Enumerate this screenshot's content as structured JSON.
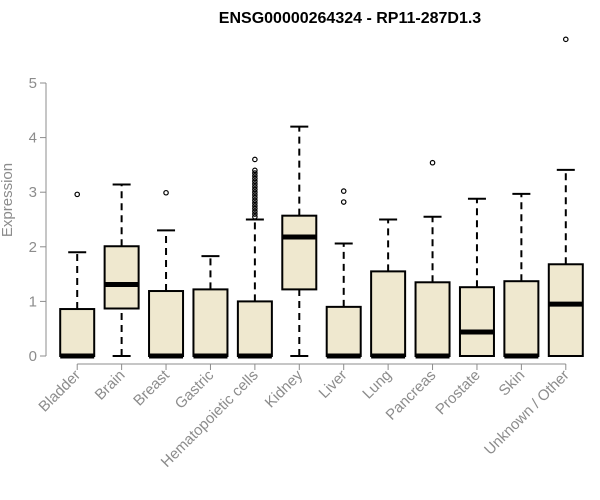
{
  "chart_data": {
    "type": "boxplot",
    "title": "ENSG00000264324 - RP11-287D1.3",
    "ylabel": "Expression",
    "xlabel": "",
    "ylim": [
      0,
      5.5
    ],
    "yticks": [
      0,
      1,
      2,
      3,
      4,
      5
    ],
    "grid": false,
    "box_fill": "#efe8cf",
    "box_stroke": "#000000",
    "categories": [
      "Bladder",
      "Brain",
      "Breast",
      "Gastric",
      "Hematopoietic cells",
      "Kidney",
      "Liver",
      "Lung",
      "Pancreas",
      "Prostate",
      "Skin",
      "Unknown / Other"
    ],
    "boxes": [
      {
        "min": 0,
        "q1": 0,
        "median": 0,
        "q3": 0.86,
        "max": 1.9,
        "outliers": [
          2.96
        ]
      },
      {
        "min": 0,
        "q1": 0.87,
        "median": 1.31,
        "q3": 2.01,
        "max": 3.14,
        "outliers": []
      },
      {
        "min": 0,
        "q1": 0,
        "median": 0,
        "q3": 1.19,
        "max": 2.3,
        "outliers": [
          2.99
        ]
      },
      {
        "min": 0,
        "q1": 0,
        "median": 0,
        "q3": 1.22,
        "max": 1.83,
        "outliers": []
      },
      {
        "min": 0,
        "q1": 0,
        "median": 0,
        "q3": 1.0,
        "max": 2.5,
        "outliers": [
          2.55,
          2.6,
          2.65,
          2.7,
          2.75,
          2.8,
          2.85,
          2.9,
          2.95,
          3.0,
          3.05,
          3.1,
          3.15,
          3.2,
          3.25,
          3.3,
          3.35,
          3.4,
          3.6
        ]
      },
      {
        "min": 0,
        "q1": 1.22,
        "median": 2.18,
        "q3": 2.57,
        "max": 4.2,
        "outliers": []
      },
      {
        "min": 0,
        "q1": 0,
        "median": 0,
        "q3": 0.9,
        "max": 2.06,
        "outliers": [
          2.82,
          3.02
        ]
      },
      {
        "min": 0,
        "q1": 0,
        "median": 0,
        "q3": 1.55,
        "max": 2.5,
        "outliers": []
      },
      {
        "min": 0,
        "q1": 0,
        "median": 0,
        "q3": 1.35,
        "max": 2.55,
        "outliers": [
          3.54
        ]
      },
      {
        "min": 0,
        "q1": 0,
        "median": 0.44,
        "q3": 1.26,
        "max": 2.88,
        "outliers": []
      },
      {
        "min": 0,
        "q1": 0,
        "median": 0,
        "q3": 1.37,
        "max": 2.97,
        "outliers": []
      },
      {
        "min": 0,
        "q1": 0,
        "median": 0.95,
        "q3": 1.68,
        "max": 3.41,
        "outliers": [
          5.8
        ]
      }
    ]
  }
}
